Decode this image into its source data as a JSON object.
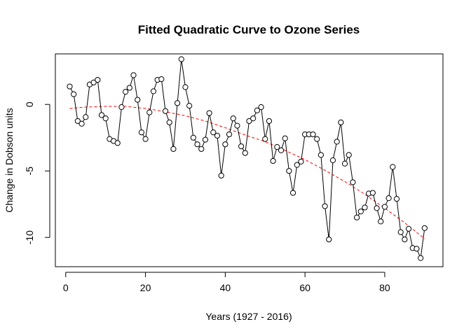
{
  "chart_data": {
    "type": "line",
    "title": "Fitted Quadratic Curve to Ozone Series",
    "xlabel": "Years (1927 - 2016)",
    "ylabel": "Change in Dobson units",
    "xlim": [
      -2.6,
      94.6
    ],
    "ylim": [
      -12.2,
      3.8
    ],
    "x_ticks": [
      0,
      20,
      40,
      60,
      80
    ],
    "y_ticks": [
      0,
      -5,
      -10
    ],
    "grid": false,
    "legend": "none",
    "series": [
      {
        "style": "black line with open circles",
        "color": "#000000",
        "x": [
          1,
          2,
          3,
          4,
          5,
          6,
          7,
          8,
          9,
          10,
          11,
          12,
          13,
          14,
          15,
          16,
          17,
          18,
          19,
          20,
          21,
          22,
          23,
          24,
          25,
          26,
          27,
          28,
          29,
          30,
          31,
          32,
          33,
          34,
          35,
          36,
          37,
          38,
          39,
          40,
          41,
          42,
          43,
          44,
          45,
          46,
          47,
          48,
          49,
          50,
          51,
          52,
          53,
          54,
          55,
          56,
          57,
          58,
          59,
          60,
          61,
          62,
          63,
          64,
          65,
          66,
          67,
          68,
          69,
          70,
          71,
          72,
          73,
          74,
          75,
          76,
          77,
          78,
          79,
          80,
          81,
          82,
          83,
          84,
          85,
          86,
          87,
          88,
          89,
          90
        ],
        "values": [
          1.35,
          0.77,
          -1.25,
          -1.45,
          -0.95,
          1.5,
          1.65,
          1.85,
          -0.8,
          -1.05,
          -2.6,
          -2.75,
          -2.9,
          -0.2,
          0.95,
          1.25,
          2.2,
          0.35,
          -2.1,
          -2.6,
          -0.6,
          0.99,
          1.85,
          1.9,
          -0.5,
          -1.35,
          -3.35,
          0.1,
          3.4,
          1.3,
          -0.1,
          -2.5,
          -3.0,
          -3.35,
          -2.65,
          -0.65,
          -2.1,
          -2.35,
          -5.35,
          -3.0,
          -2.25,
          -1.05,
          -1.6,
          -3.15,
          -3.65,
          -1.25,
          -1.05,
          -0.45,
          -0.2,
          -2.6,
          -1.25,
          -4.25,
          -3.2,
          -3.45,
          -2.55,
          -5.0,
          -6.65,
          -4.55,
          -4.3,
          -2.25,
          -2.25,
          -2.25,
          -2.6,
          -3.8,
          -7.65,
          -10.15,
          -4.2,
          -2.8,
          -1.35,
          -4.45,
          -3.8,
          -5.85,
          -8.5,
          -8.05,
          -7.75,
          -6.7,
          -6.65,
          -7.8,
          -8.8,
          -7.7,
          -7.05,
          -4.7,
          -7.1,
          -9.6,
          -10.15,
          -9.35,
          -10.8,
          -10.85,
          -11.55,
          -9.3
        ]
      },
      {
        "style": "red dashed fitted quadratic",
        "color": "#ff0000",
        "x": [
          1,
          5,
          10,
          15,
          20,
          25,
          30,
          35,
          40,
          45,
          50,
          55,
          60,
          65,
          70,
          75,
          80,
          85,
          90
        ],
        "values": [
          -0.3,
          -0.2,
          -0.15,
          -0.15,
          -0.3,
          -0.55,
          -0.85,
          -1.25,
          -1.75,
          -2.3,
          -2.8,
          -3.45,
          -4.15,
          -4.95,
          -5.8,
          -6.75,
          -7.8,
          -8.9,
          -10.1
        ]
      }
    ]
  }
}
